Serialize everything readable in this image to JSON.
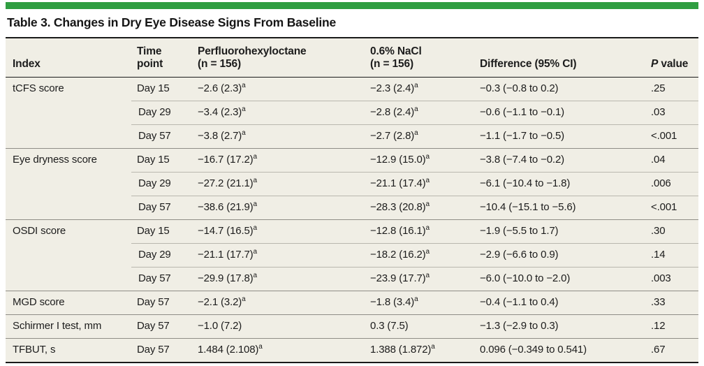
{
  "page": {
    "title": "Table 3. Changes in Dry Eye Disease Signs From Baseline",
    "accent_color": "#2f9e41",
    "table_background": "#f0eee5",
    "footnote_marker": "a"
  },
  "table": {
    "columns": [
      {
        "label": "Index"
      },
      {
        "label": "Time\npoint"
      },
      {
        "label": "Perfluorohexyloctane\n(n = 156)"
      },
      {
        "label": "0.6% NaCl\n(n = 156)"
      },
      {
        "label": "Difference (95% CI)"
      },
      {
        "label": "P value",
        "italic_first": true
      }
    ],
    "groups": [
      {
        "index": "tCFS score",
        "rows": [
          {
            "time": "Day 15",
            "drug": "−2.6 (2.3)",
            "drug_sup": "a",
            "control": "−2.3 (2.4)",
            "control_sup": "a",
            "difference": "−0.3 (−0.8 to 0.2)",
            "p_value": ".25"
          },
          {
            "time": "Day 29",
            "drug": "−3.4 (2.3)",
            "drug_sup": "a",
            "control": "−2.8 (2.4)",
            "control_sup": "a",
            "difference": "−0.6 (−1.1 to −0.1)",
            "p_value": ".03"
          },
          {
            "time": "Day 57",
            "drug": "−3.8 (2.7)",
            "drug_sup": "a",
            "control": "−2.7 (2.8)",
            "control_sup": "a",
            "difference": "−1.1 (−1.7 to −0.5)",
            "p_value": "<.001"
          }
        ]
      },
      {
        "index": "Eye dryness score",
        "rows": [
          {
            "time": "Day 15",
            "drug": "−16.7 (17.2)",
            "drug_sup": "a",
            "control": "−12.9 (15.0)",
            "control_sup": "a",
            "difference": "−3.8 (−7.4 to −0.2)",
            "p_value": ".04"
          },
          {
            "time": "Day 29",
            "drug": "−27.2 (21.1)",
            "drug_sup": "a",
            "control": "−21.1 (17.4)",
            "control_sup": "a",
            "difference": "−6.1 (−10.4 to −1.8)",
            "p_value": ".006"
          },
          {
            "time": "Day 57",
            "drug": "−38.6 (21.9)",
            "drug_sup": "a",
            "control": "−28.3 (20.8)",
            "control_sup": "a",
            "difference": "−10.4 (−15.1 to −5.6)",
            "p_value": "<.001"
          }
        ]
      },
      {
        "index": "OSDI score",
        "rows": [
          {
            "time": "Day 15",
            "drug": "−14.7 (16.5)",
            "drug_sup": "a",
            "control": "−12.8 (16.1)",
            "control_sup": "a",
            "difference": "−1.9 (−5.5 to 1.7)",
            "p_value": ".30"
          },
          {
            "time": "Day 29",
            "drug": "−21.1 (17.7)",
            "drug_sup": "a",
            "control": "−18.2 (16.2)",
            "control_sup": "a",
            "difference": "−2.9 (−6.6 to 0.9)",
            "p_value": ".14"
          },
          {
            "time": "Day 57",
            "drug": "−29.9 (17.8)",
            "drug_sup": "a",
            "control": "−23.9 (17.7)",
            "control_sup": "a",
            "difference": "−6.0 (−10.0 to −2.0)",
            "p_value": ".003"
          }
        ]
      },
      {
        "index": "MGD score",
        "rows": [
          {
            "time": "Day 57",
            "drug": "−2.1 (3.2)",
            "drug_sup": "a",
            "control": "−1.8 (3.4)",
            "control_sup": "a",
            "difference": "−0.4 (−1.1 to 0.4)",
            "p_value": ".33"
          }
        ]
      },
      {
        "index": "Schirmer I test, mm",
        "rows": [
          {
            "time": "Day 57",
            "drug": "−1.0 (7.2)",
            "control": "0.3 (7.5)",
            "difference": "−1.3 (−2.9 to 0.3)",
            "p_value": ".12"
          }
        ]
      },
      {
        "index": "TFBUT, s",
        "rows": [
          {
            "time": "Day 57",
            "drug": "1.484 (2.108)",
            "drug_sup": "a",
            "control": "1.388 (1.872)",
            "control_sup": "a",
            "difference": "0.096 (−0.349 to 0.541)",
            "p_value": ".67"
          }
        ]
      }
    ]
  }
}
